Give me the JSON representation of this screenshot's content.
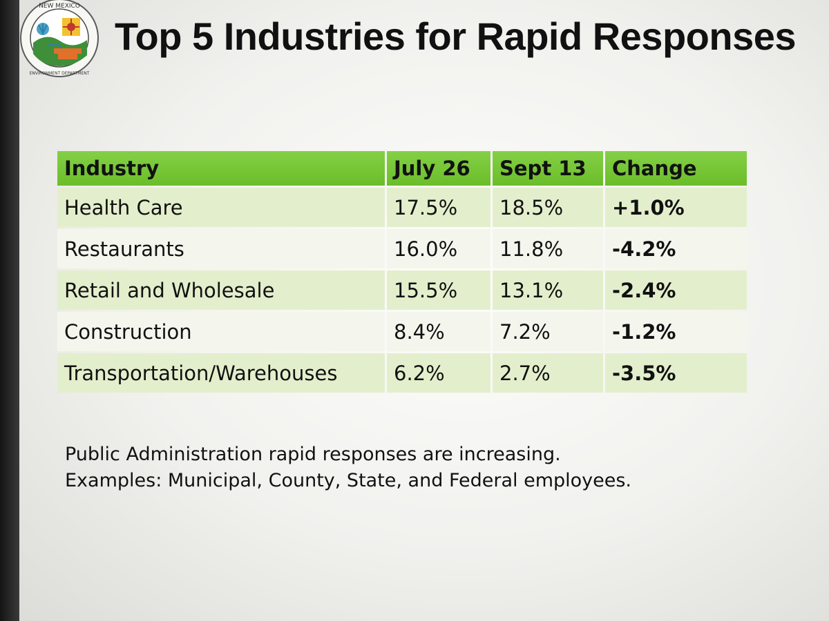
{
  "slide": {
    "title": "Top 5 Industries for Rapid Responses",
    "logo": {
      "icon": "state-department-seal-icon",
      "text_top": "NEW MEXICO",
      "text_bottom": "ENVIRONMENT DEPARTMENT"
    }
  },
  "table": {
    "headers": {
      "industry": "Industry",
      "july": "July 26",
      "sept": "Sept 13",
      "change": "Change"
    },
    "rows": [
      {
        "industry": "Health Care",
        "july": "17.5%",
        "sept": "18.5%",
        "change": "+1.0%"
      },
      {
        "industry": "Restaurants",
        "july": "16.0%",
        "sept": "11.8%",
        "change": "-4.2%"
      },
      {
        "industry": "Retail and Wholesale",
        "july": "15.5%",
        "sept": "13.1%",
        "change": "-2.4%"
      },
      {
        "industry": "Construction",
        "july": "8.4%",
        "sept": "7.2%",
        "change": "-1.2%"
      },
      {
        "industry": "Transportation/Warehouses",
        "july": "6.2%",
        "sept": "2.7%",
        "change": "-3.5%"
      }
    ]
  },
  "note": {
    "line1": "Public Administration rapid responses are increasing.",
    "line2": "Examples: Municipal, County, State, and Federal employees."
  },
  "colors": {
    "header_green": "#6bbd2a",
    "row_tint_green": "#e3efcc",
    "row_tint_light": "#f4f6ee"
  }
}
